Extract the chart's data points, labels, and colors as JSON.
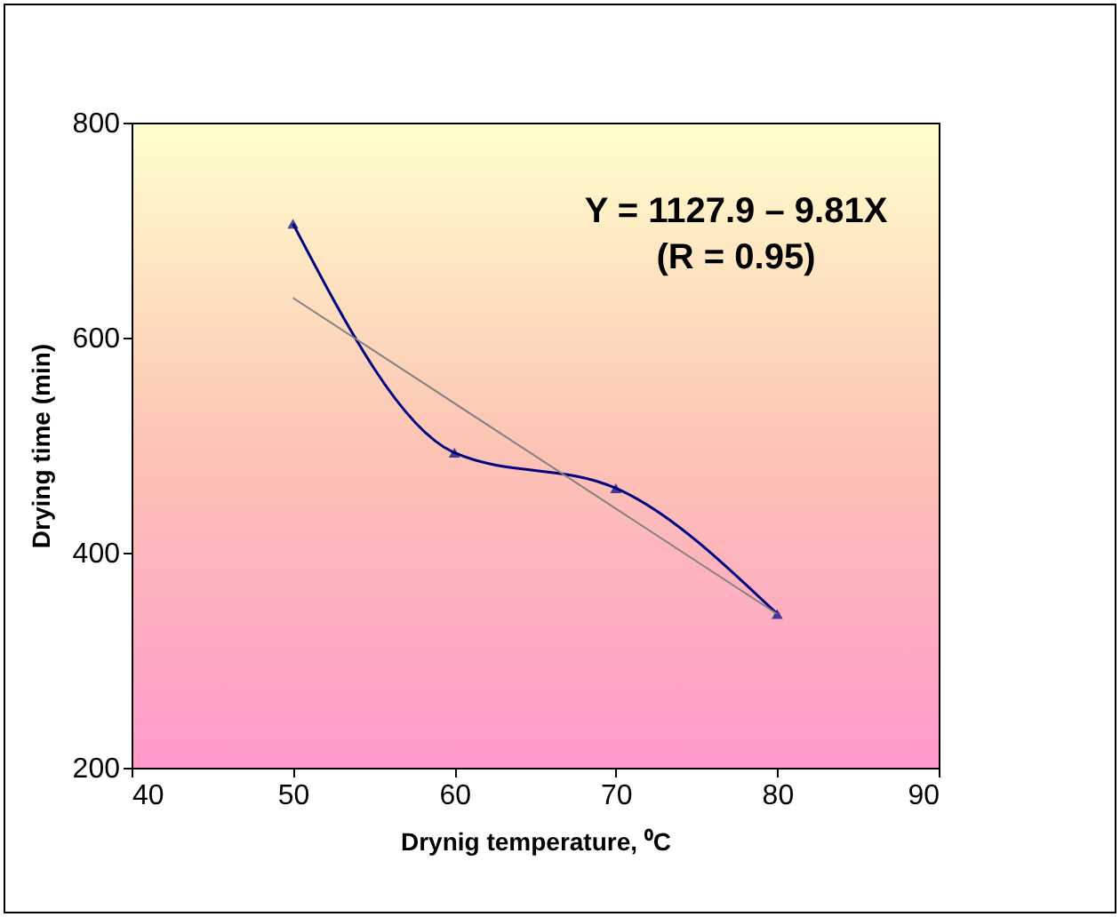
{
  "chart_data": {
    "type": "line",
    "xlabel": "Drynig temperature, ⁰C",
    "ylabel": "Drying time (min)",
    "x": [
      50,
      60,
      70,
      80
    ],
    "series": [
      {
        "color": "#000080",
        "values": [
          706,
          493,
          460,
          343
        ]
      },
      {
        "type": "line",
        "color": "#808080",
        "x": [
          50,
          80
        ],
        "values": [
          637,
          343
        ],
        "marker": "none"
      }
    ],
    "xlim": [
      40,
      90
    ],
    "xticks": [
      40,
      50,
      60,
      70,
      80,
      90
    ],
    "ylim": [
      200,
      800
    ],
    "yticks": [
      200,
      400,
      600,
      800
    ],
    "grid": false,
    "marker": "triangle",
    "annotations": [
      "Y = 1127.9 – 9.81X",
      "(R = 0.95)"
    ]
  }
}
